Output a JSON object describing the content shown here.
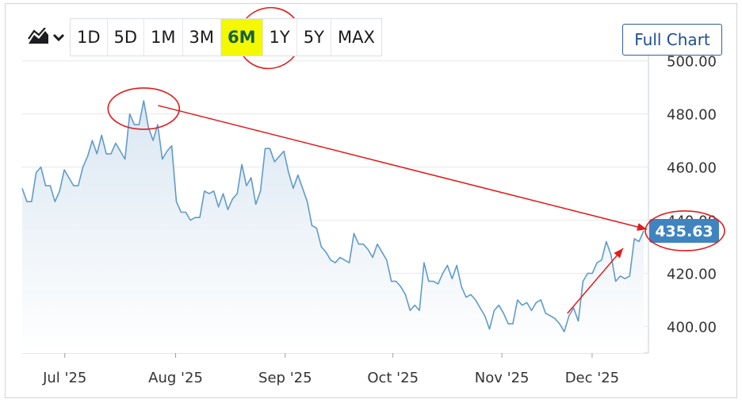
{
  "toolbar": {
    "chart_type_icon": "area-chart-icon",
    "dropdown_icon": "chevron-down-icon",
    "ranges": [
      "1D",
      "5D",
      "1M",
      "3M",
      "6M",
      "1Y",
      "5Y",
      "MAX"
    ],
    "active_range": "6M",
    "full_chart_label": "Full Chart"
  },
  "colors": {
    "line": "#5f9bcb",
    "area_top": "#dbe7f2",
    "badge": "#3f84bf",
    "annotation": "#e31b1b",
    "highlight": "#f4f800"
  },
  "chart_data": {
    "type": "area",
    "grid": true,
    "x_ticks": [
      "Jul '25",
      "Aug '25",
      "Sep '25",
      "Oct '25",
      "Nov '25",
      "Dec '25"
    ],
    "y_ticks": [
      "400.00",
      "420.00",
      "440.00",
      "460.00",
      "480.00",
      "500.00"
    ],
    "ylim": [
      390,
      502
    ],
    "last_value": "435.63",
    "series": [
      {
        "values": [
          452,
          447,
          447,
          458,
          460,
          453,
          453,
          447,
          451,
          459,
          456,
          453,
          453,
          460,
          464,
          470,
          465,
          472,
          465,
          465,
          469,
          466,
          463,
          480,
          476,
          476,
          485,
          475,
          470,
          476,
          463,
          466,
          468,
          447,
          443,
          443,
          440,
          441,
          441,
          451,
          450,
          451,
          445,
          450,
          444,
          448,
          450,
          461,
          453,
          456,
          446,
          451,
          467,
          467,
          462,
          464,
          466,
          458,
          452,
          457,
          452,
          447,
          438,
          437,
          430,
          428,
          425,
          424,
          426,
          425,
          424,
          435,
          431,
          431,
          429,
          426,
          431,
          428,
          425,
          417,
          417,
          415,
          412,
          406,
          408,
          406,
          424,
          417,
          417,
          416,
          420,
          423,
          418,
          423,
          415,
          411,
          412,
          410,
          407,
          404,
          399,
          406,
          408,
          405,
          401,
          401,
          410,
          408,
          409,
          406,
          409,
          410,
          405,
          404,
          403,
          401,
          398,
          404,
          407,
          402,
          417,
          420,
          420,
          424,
          425,
          432,
          427,
          417,
          419,
          418,
          419,
          433,
          432,
          436
        ]
      }
    ],
    "annotations": {
      "circles": [
        "6M",
        "peak",
        "last-value"
      ],
      "arrows": [
        "peak-to-last-value",
        "recent-rise"
      ]
    }
  }
}
